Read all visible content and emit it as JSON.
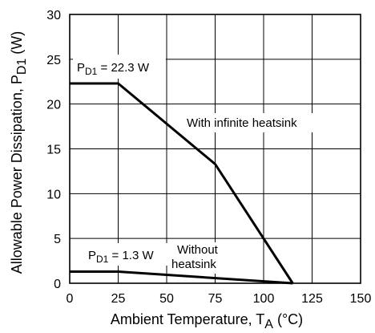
{
  "chart_data": {
    "type": "line",
    "xlabel_main": "Ambient Temperature, T",
    "xlabel_sub": "A",
    "xlabel_unit": " (°C)",
    "ylabel_main": "Allowable Power Dissipation, P",
    "ylabel_sub": "D1",
    "ylabel_unit": " (W)",
    "xlim": [
      0,
      150
    ],
    "ylim": [
      0,
      30
    ],
    "x_ticks": [
      0,
      25,
      50,
      75,
      100,
      125,
      150
    ],
    "y_ticks": [
      0,
      5,
      10,
      15,
      20,
      25,
      30
    ],
    "x_tick_labels": [
      "0",
      "25",
      "50",
      "75",
      "100",
      "125",
      "150"
    ],
    "y_tick_labels": [
      "0",
      "5",
      "10",
      "15",
      "20",
      "25",
      "30"
    ],
    "grid": true,
    "series": [
      {
        "name": "With infinite heatsink",
        "x": [
          0,
          25,
          75,
          115
        ],
        "y": [
          22.3,
          22.3,
          13.3,
          0
        ]
      },
      {
        "name": "Without heatsink",
        "x": [
          0,
          25,
          115
        ],
        "y": [
          1.3,
          1.3,
          0
        ]
      }
    ],
    "annotations": [
      {
        "id": "pd1-22",
        "prefix": "P",
        "sub": "D1",
        "suffix": " = 22.3 W"
      },
      {
        "id": "infinite",
        "text": "With infinite heatsink"
      },
      {
        "id": "pd1-13",
        "prefix": "P",
        "sub": "D1",
        "suffix": " = 1.3 W"
      },
      {
        "id": "without",
        "line1": "Without",
        "line2": "heatsink"
      }
    ]
  }
}
